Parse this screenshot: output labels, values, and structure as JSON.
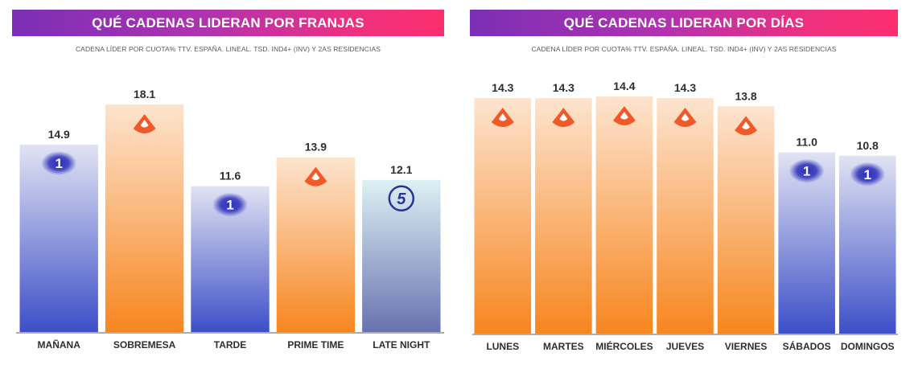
{
  "colors": {
    "banner_start": "#7a2fb5",
    "banner_end": "#fb2e6e",
    "antena3_top": "#fde4cf",
    "antena3_bottom": "#f7861f",
    "antena3_logo": "#f05a28",
    "tve1_top": "#e1e3f3",
    "tve1_bottom": "#3d4fc8",
    "tve1_logo": "#2c2fb8",
    "la5_top": "#dff0f4",
    "la5_bottom": "#6872b0",
    "la5_logo": "#283593"
  },
  "left_panel": {
    "title": "QUÉ CADENAS LIDERAN POR FRANJAS",
    "subtitle": "CADENA LÍDER POR CUOTA% TTV. ESPAÑA. LINEAL. TSD. IND4+ (INV) Y 2AS RESIDENCIAS"
  },
  "right_panel": {
    "title": "QUÉ CADENAS LIDERAN POR DÍAS",
    "subtitle": "CADENA LÍDER POR CUOTA% TTV. ESPAÑA. LINEAL. TSD. IND4+ (INV) Y 2AS RESIDENCIAS"
  },
  "chart_data": [
    {
      "type": "bar",
      "title": "QUÉ CADENAS LIDERAN POR FRANJAS",
      "categories": [
        "MAÑANA",
        "SOBREMESA",
        "TARDE",
        "PRIME TIME",
        "LATE NIGHT"
      ],
      "values": [
        14.9,
        18.1,
        11.6,
        13.9,
        12.1
      ],
      "value_labels": [
        "14.9",
        "18.1",
        "11.6",
        "13.9",
        "12.1"
      ],
      "leader_logos": [
        "la1-icon",
        "antena3-icon",
        "la1-icon",
        "antena3-icon",
        "cuatro5-icon"
      ],
      "ylim": [
        0,
        18.1
      ],
      "grid": false
    },
    {
      "type": "bar",
      "title": "QUÉ CADENAS LIDERAN POR DÍAS",
      "categories": [
        "LUNES",
        "MARTES",
        "MIÉRCOLES",
        "JUEVES",
        "VIERNES",
        "SÁBADOS",
        "DOMINGOS"
      ],
      "values": [
        14.3,
        14.3,
        14.4,
        14.3,
        13.8,
        11.0,
        10.8
      ],
      "value_labels": [
        "14.3",
        "14.3",
        "14.4",
        "14.3",
        "13.8",
        "11.0",
        "10.8"
      ],
      "leader_logos": [
        "antena3-icon",
        "antena3-icon",
        "antena3-icon",
        "antena3-icon",
        "antena3-icon",
        "la1-icon",
        "la1-icon"
      ],
      "ylim": [
        0,
        14.4
      ],
      "grid": false
    }
  ]
}
